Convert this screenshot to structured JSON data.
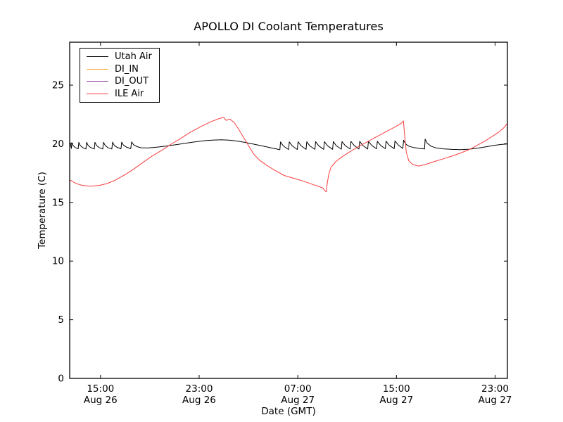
{
  "figure": {
    "background": "#ffffff",
    "frame_color": "#000000",
    "tick_style": "inward, all four spines, no grid"
  },
  "chart_data": {
    "type": "line",
    "title": "APOLLO DI Coolant Temperatures",
    "xlabel": "Date (GMT)",
    "ylabel": "Temperature (C)",
    "x_unit": "hours since Aug 26 00:00 GMT",
    "xlim": [
      12.5,
      48.0
    ],
    "ylim": [
      0,
      28.66
    ],
    "grid": false,
    "legend_position": "upper left",
    "x_ticks": [
      {
        "value": 15,
        "time": "15:00",
        "date": "Aug 26"
      },
      {
        "value": 23,
        "time": "23:00",
        "date": "Aug 26"
      },
      {
        "value": 31,
        "time": "07:00",
        "date": "Aug 27"
      },
      {
        "value": 39,
        "time": "15:00",
        "date": "Aug 27"
      },
      {
        "value": 47,
        "time": "23:00",
        "date": "Aug 27"
      }
    ],
    "y_ticks": [
      0,
      5,
      10,
      15,
      20,
      25
    ],
    "series": [
      {
        "name": "Utah Air",
        "color": "#000000",
        "visible_in_plot": true,
        "points": [
          [
            12.54,
            20.1
          ],
          [
            12.6,
            19.8
          ],
          [
            12.64,
            19.6
          ],
          [
            12.67,
            20.1
          ],
          [
            12.78,
            19.85
          ],
          [
            12.95,
            19.68
          ],
          [
            13.19,
            19.57
          ],
          [
            13.24,
            20.12
          ],
          [
            13.36,
            19.85
          ],
          [
            13.55,
            19.68
          ],
          [
            13.82,
            19.56
          ],
          [
            13.87,
            20.12
          ],
          [
            14.0,
            19.85
          ],
          [
            14.2,
            19.68
          ],
          [
            14.5,
            19.56
          ],
          [
            14.55,
            20.12
          ],
          [
            14.68,
            19.85
          ],
          [
            14.88,
            19.68
          ],
          [
            15.18,
            19.56
          ],
          [
            15.24,
            20.12
          ],
          [
            15.38,
            19.86
          ],
          [
            15.58,
            19.68
          ],
          [
            15.92,
            19.56
          ],
          [
            15.98,
            20.14
          ],
          [
            16.12,
            19.86
          ],
          [
            16.34,
            19.7
          ],
          [
            16.66,
            19.57
          ],
          [
            16.72,
            20.14
          ],
          [
            16.86,
            19.88
          ],
          [
            17.1,
            19.72
          ],
          [
            17.45,
            19.58
          ],
          [
            17.52,
            20.16
          ],
          [
            17.68,
            19.92
          ],
          [
            17.95,
            19.76
          ],
          [
            18.3,
            19.66
          ],
          [
            18.8,
            19.64
          ],
          [
            19.5,
            19.7
          ],
          [
            20.3,
            19.8
          ],
          [
            21.1,
            19.92
          ],
          [
            21.9,
            20.05
          ],
          [
            22.7,
            20.17
          ],
          [
            23.5,
            20.27
          ],
          [
            24.2,
            20.32
          ],
          [
            24.8,
            20.34
          ],
          [
            25.4,
            20.31
          ],
          [
            26.0,
            20.24
          ],
          [
            26.7,
            20.12
          ],
          [
            27.4,
            19.97
          ],
          [
            28.1,
            19.82
          ],
          [
            28.8,
            19.66
          ],
          [
            29.3,
            19.55
          ],
          [
            29.5,
            19.5
          ],
          [
            29.55,
            19.5
          ],
          [
            29.6,
            20.16
          ],
          [
            29.82,
            19.82
          ],
          [
            30.25,
            19.51
          ],
          [
            30.31,
            20.16
          ],
          [
            30.55,
            19.82
          ],
          [
            30.96,
            19.51
          ],
          [
            31.02,
            20.17
          ],
          [
            31.28,
            19.82
          ],
          [
            31.67,
            19.52
          ],
          [
            31.73,
            20.17
          ],
          [
            31.98,
            19.82
          ],
          [
            32.39,
            19.52
          ],
          [
            32.45,
            20.18
          ],
          [
            32.7,
            19.83
          ],
          [
            33.1,
            19.53
          ],
          [
            33.16,
            20.18
          ],
          [
            33.42,
            19.83
          ],
          [
            33.82,
            19.53
          ],
          [
            33.88,
            20.19
          ],
          [
            34.12,
            19.84
          ],
          [
            34.53,
            19.54
          ],
          [
            34.59,
            20.19
          ],
          [
            34.85,
            19.84
          ],
          [
            35.25,
            19.55
          ],
          [
            35.31,
            20.2
          ],
          [
            35.58,
            19.85
          ],
          [
            35.96,
            19.55
          ],
          [
            36.02,
            20.2
          ],
          [
            36.28,
            19.85
          ],
          [
            36.67,
            19.56
          ],
          [
            36.73,
            20.21
          ],
          [
            37.0,
            19.86
          ],
          [
            37.39,
            19.57
          ],
          [
            37.45,
            20.21
          ],
          [
            37.72,
            19.86
          ],
          [
            38.1,
            19.58
          ],
          [
            38.16,
            20.22
          ],
          [
            38.42,
            19.87
          ],
          [
            38.82,
            19.59
          ],
          [
            38.88,
            20.24
          ],
          [
            39.15,
            19.9
          ],
          [
            39.52,
            19.6
          ],
          [
            39.58,
            20.3
          ],
          [
            39.75,
            19.98
          ],
          [
            40.0,
            19.8
          ],
          [
            40.4,
            19.68
          ],
          [
            40.9,
            19.6
          ],
          [
            41.28,
            19.56
          ],
          [
            41.33,
            20.4
          ],
          [
            41.5,
            20.05
          ],
          [
            41.8,
            19.8
          ],
          [
            42.2,
            19.65
          ],
          [
            42.8,
            19.57
          ],
          [
            43.5,
            19.52
          ],
          [
            44.2,
            19.5
          ],
          [
            44.9,
            19.54
          ],
          [
            45.6,
            19.63
          ],
          [
            46.3,
            19.75
          ],
          [
            46.9,
            19.86
          ],
          [
            47.5,
            19.94
          ],
          [
            47.97,
            19.98
          ]
        ]
      },
      {
        "name": "DI_IN",
        "color": "#ffa93e",
        "visible_in_plot": false,
        "points": []
      },
      {
        "name": "DI_OUT",
        "color": "#8e3f9e",
        "visible_in_plot": false,
        "points": []
      },
      {
        "name": "ILE Air",
        "color": "#f93d3d",
        "visible_in_plot": true,
        "points": [
          [
            12.54,
            16.9
          ],
          [
            13.0,
            16.62
          ],
          [
            13.5,
            16.46
          ],
          [
            14.2,
            16.38
          ],
          [
            14.9,
            16.45
          ],
          [
            15.5,
            16.6
          ],
          [
            16.1,
            16.85
          ],
          [
            16.8,
            17.25
          ],
          [
            17.5,
            17.7
          ],
          [
            18.3,
            18.3
          ],
          [
            19.1,
            18.9
          ],
          [
            19.9,
            19.4
          ],
          [
            20.7,
            19.95
          ],
          [
            21.5,
            20.45
          ],
          [
            22.3,
            21.0
          ],
          [
            23.2,
            21.5
          ],
          [
            24.0,
            21.9
          ],
          [
            24.7,
            22.18
          ],
          [
            25.0,
            22.25
          ],
          [
            25.18,
            22.0
          ],
          [
            25.5,
            22.1
          ],
          [
            25.85,
            21.8
          ],
          [
            26.2,
            21.25
          ],
          [
            26.6,
            20.55
          ],
          [
            27.0,
            19.85
          ],
          [
            27.4,
            19.15
          ],
          [
            27.9,
            18.6
          ],
          [
            28.5,
            18.15
          ],
          [
            29.2,
            17.7
          ],
          [
            29.9,
            17.3
          ],
          [
            30.7,
            17.05
          ],
          [
            31.5,
            16.8
          ],
          [
            32.3,
            16.5
          ],
          [
            33.0,
            16.25
          ],
          [
            33.2,
            16.0
          ],
          [
            33.3,
            15.9
          ],
          [
            33.4,
            16.7
          ],
          [
            33.52,
            17.45
          ],
          [
            33.7,
            18.0
          ],
          [
            34.1,
            18.5
          ],
          [
            34.6,
            18.9
          ],
          [
            35.2,
            19.3
          ],
          [
            35.9,
            19.75
          ],
          [
            36.6,
            20.15
          ],
          [
            37.3,
            20.55
          ],
          [
            38.1,
            21.0
          ],
          [
            38.9,
            21.45
          ],
          [
            39.4,
            21.75
          ],
          [
            39.57,
            21.95
          ],
          [
            39.67,
            20.7
          ],
          [
            39.8,
            19.3
          ],
          [
            40.0,
            18.55
          ],
          [
            40.3,
            18.25
          ],
          [
            40.8,
            18.1
          ],
          [
            41.4,
            18.25
          ],
          [
            42.1,
            18.5
          ],
          [
            42.8,
            18.72
          ],
          [
            43.6,
            18.98
          ],
          [
            44.3,
            19.25
          ],
          [
            45.0,
            19.55
          ],
          [
            45.6,
            19.9
          ],
          [
            46.2,
            20.25
          ],
          [
            46.8,
            20.65
          ],
          [
            47.3,
            21.0
          ],
          [
            47.7,
            21.35
          ],
          [
            47.97,
            21.7
          ]
        ]
      }
    ]
  }
}
